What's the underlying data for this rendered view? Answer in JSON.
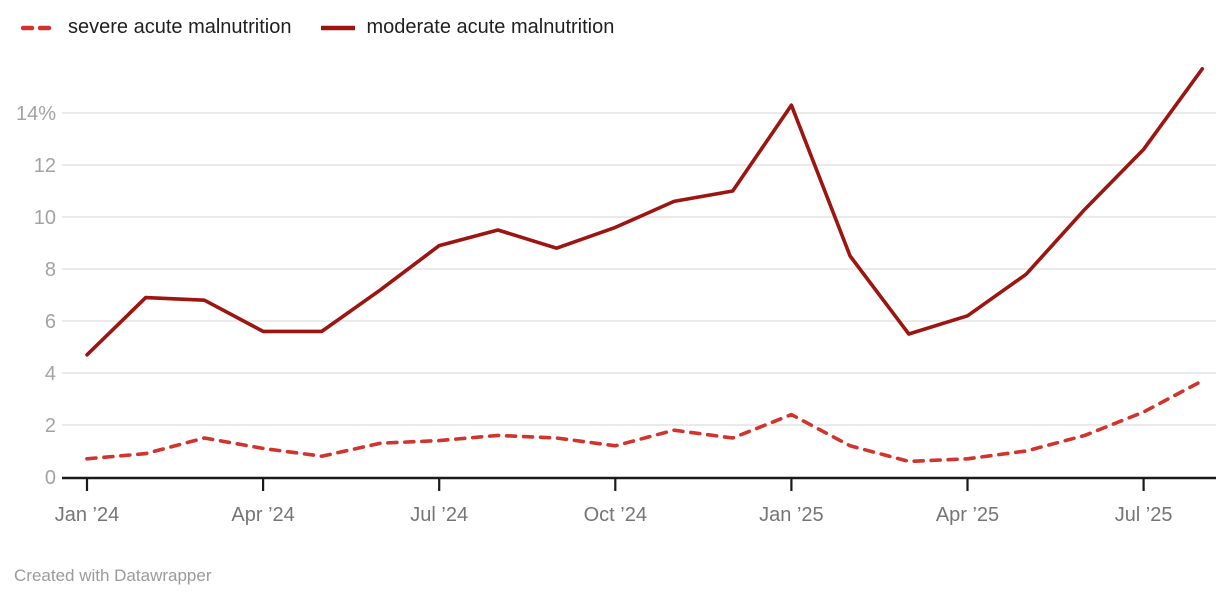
{
  "legend": {
    "items": [
      {
        "label": "severe acute malnutrition",
        "color": "#d0342c",
        "style": "dashed"
      },
      {
        "label": "moderate acute malnutrition",
        "color": "#9c1510",
        "style": "solid"
      }
    ]
  },
  "footer": {
    "text": "Created with Datawrapper"
  },
  "colors": {
    "background": "#ffffff",
    "grid": "#e4e4e4",
    "axis": "#1a1a1a",
    "y_label": "#a3a3a3",
    "x_label": "#757575",
    "legend_text": "#1f1f1f",
    "footer_text": "#9b9b9b",
    "severe_line": "#d0342c",
    "moderate_line": "#9c1510"
  },
  "chart_data": {
    "type": "line",
    "title": "",
    "unit": "%",
    "x": [
      "Jan ’24",
      "Feb ’24",
      "Mar ’24",
      "Apr ’24",
      "May ’24",
      "Jun ’24",
      "Jul ’24",
      "Aug ’24",
      "Sep ’24",
      "Oct ’24",
      "Nov ’24",
      "Dec ’24",
      "Jan ’25",
      "Feb ’25",
      "Mar ’25",
      "Apr ’25",
      "May ’25",
      "Jun ’25",
      "Jul ’25",
      "Aug ’25"
    ],
    "series": [
      {
        "name": "severe acute malnutrition",
        "style": "dashed",
        "color": "#d0342c",
        "values": [
          0.7,
          0.9,
          1.5,
          1.1,
          0.8,
          1.3,
          1.4,
          1.6,
          1.5,
          1.2,
          1.8,
          1.5,
          2.4,
          1.2,
          0.6,
          0.7,
          1.0,
          1.6,
          2.5,
          3.7
        ]
      },
      {
        "name": "moderate acute malnutrition",
        "style": "solid",
        "color": "#9c1510",
        "values": [
          4.7,
          6.9,
          6.8,
          5.6,
          5.6,
          7.2,
          8.9,
          9.5,
          8.8,
          9.6,
          10.6,
          11.0,
          14.3,
          8.5,
          5.5,
          6.2,
          7.8,
          10.3,
          12.6,
          15.7
        ]
      }
    ],
    "x_tick_labels": [
      "Jan ’24",
      "Apr ’24",
      "Jul ’24",
      "Oct ’24",
      "Jan ’25",
      "Apr ’25",
      "Jul ’25"
    ],
    "x_tick_indices": [
      0,
      3,
      6,
      9,
      12,
      15,
      18
    ],
    "y_ticks": [
      0,
      2,
      4,
      6,
      8,
      10,
      12,
      14
    ],
    "y_tick_labels": [
      "0",
      "2",
      "4",
      "6",
      "8",
      "10",
      "12",
      "14%"
    ],
    "ylim": [
      0,
      16
    ],
    "grid": "horizontal",
    "legend_position": "top-left"
  }
}
